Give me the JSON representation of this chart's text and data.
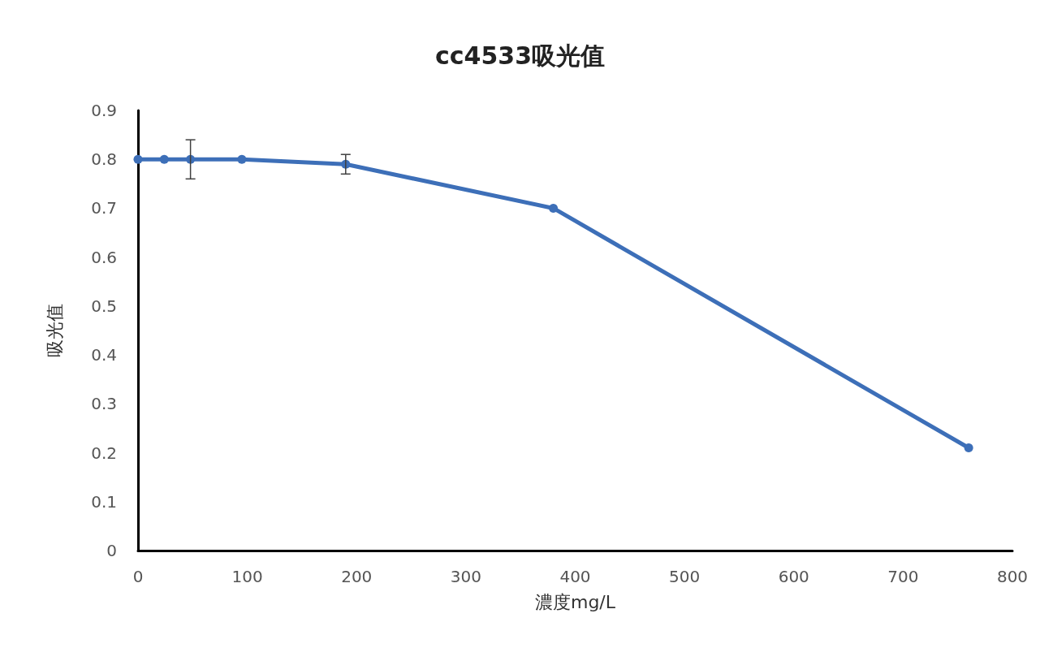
{
  "chart_data": {
    "type": "line",
    "title": "cc4533吸光值",
    "xlabel": "濃度mg/L",
    "ylabel": "吸光值",
    "x": [
      0,
      24,
      48,
      95,
      190,
      380,
      760
    ],
    "series": [
      {
        "color": "#3d6fb8",
        "values": [
          0.8,
          0.8,
          0.8,
          0.8,
          0.79,
          0.7,
          0.21
        ],
        "errors": [
          null,
          null,
          0.04,
          null,
          0.02,
          null,
          null
        ]
      }
    ],
    "xlim": [
      0,
      800
    ],
    "xticks": [
      0,
      100,
      200,
      300,
      400,
      500,
      600,
      700,
      800
    ],
    "ylim": [
      0,
      0.9
    ],
    "yticks": [
      0,
      0.1,
      0.2,
      0.3,
      0.4,
      0.5,
      0.6,
      0.7,
      0.8,
      0.9
    ],
    "grid": false,
    "marker": "circle",
    "line_style": "solid"
  }
}
